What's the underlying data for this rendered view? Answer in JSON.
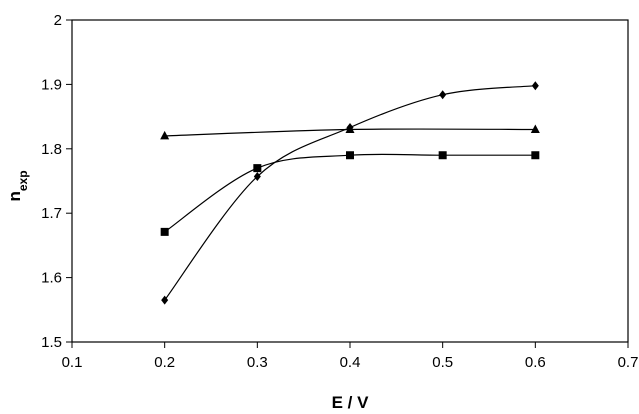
{
  "chart_data": {
    "type": "line",
    "xlabel": "E / V",
    "ylabel_main": "n",
    "ylabel_sub": "exp",
    "xlim": [
      0.1,
      0.7
    ],
    "ylim": [
      1.5,
      2.0
    ],
    "xticks": [
      0.1,
      0.2,
      0.3,
      0.4,
      0.5,
      0.6,
      0.7
    ],
    "yticks": [
      1.5,
      1.6,
      1.7,
      1.8,
      1.9,
      2.0
    ],
    "xtick_labels": [
      "0.1",
      "0.2",
      "0.3",
      "0.4",
      "0.5",
      "0.6",
      "0.7"
    ],
    "ytick_labels": [
      "1.5",
      "1.6",
      "1.7",
      "1.8",
      "1.9",
      "2"
    ],
    "grid": false,
    "legend": "none",
    "line_color": "#000000",
    "series": [
      {
        "marker": "diamond",
        "x": [
          0.2,
          0.3,
          0.4,
          0.5,
          0.6
        ],
        "y": [
          1.565,
          1.757,
          1.833,
          1.884,
          1.898
        ]
      },
      {
        "marker": "square",
        "x": [
          0.2,
          0.3,
          0.4,
          0.5,
          0.6
        ],
        "y": [
          1.671,
          1.77,
          1.79,
          1.79,
          1.79
        ]
      },
      {
        "marker": "triangle",
        "x": [
          0.2,
          0.4,
          0.6
        ],
        "y": [
          1.82,
          1.83,
          1.83
        ]
      }
    ]
  }
}
